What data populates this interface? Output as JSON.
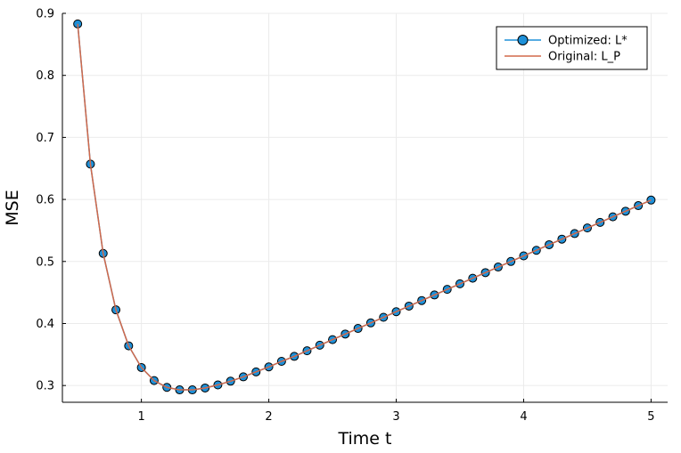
{
  "chart_data": {
    "type": "line",
    "title": "",
    "xlabel": "Time t",
    "ylabel": "MSE",
    "xlim": [
      0.38,
      5.13
    ],
    "ylim": [
      0.273,
      0.9
    ],
    "xticks": [
      1,
      2,
      3,
      4,
      5
    ],
    "yticks": [
      0.3,
      0.4,
      0.5,
      0.6,
      0.7,
      0.8,
      0.9
    ],
    "xtick_labels": [
      "1",
      "2",
      "3",
      "4",
      "5"
    ],
    "ytick_labels": [
      "0.3",
      "0.4",
      "0.5",
      "0.6",
      "0.7",
      "0.8",
      "0.9"
    ],
    "grid": true,
    "legend_position": "top-right",
    "x": [
      0.5,
      0.6,
      0.7,
      0.8,
      0.9,
      1.0,
      1.1,
      1.2,
      1.3,
      1.4,
      1.5,
      1.6,
      1.7,
      1.8,
      1.9,
      2.0,
      2.1,
      2.2,
      2.3,
      2.4,
      2.5,
      2.6,
      2.7,
      2.8,
      2.9,
      3.0,
      3.1,
      3.2,
      3.3,
      3.4,
      3.5,
      3.6,
      3.7,
      3.8,
      3.9,
      4.0,
      4.1,
      4.2,
      4.3,
      4.4,
      4.5,
      4.6,
      4.7,
      4.8,
      4.9,
      5.0
    ],
    "series": [
      {
        "name": "Optimized: L*",
        "style": "line-marker",
        "color": "#1E90D8",
        "values": [
          0.883,
          0.657,
          0.513,
          0.422,
          0.364,
          0.329,
          0.308,
          0.297,
          0.293,
          0.293,
          0.296,
          0.301,
          0.307,
          0.314,
          0.322,
          0.33,
          0.339,
          0.347,
          0.356,
          0.365,
          0.374,
          0.383,
          0.392,
          0.401,
          0.41,
          0.419,
          0.428,
          0.437,
          0.446,
          0.455,
          0.464,
          0.473,
          0.482,
          0.491,
          0.5,
          0.509,
          0.518,
          0.527,
          0.536,
          0.545,
          0.554,
          0.563,
          0.572,
          0.581,
          0.59,
          0.599
        ]
      },
      {
        "name": "Original: L_P",
        "style": "line",
        "color": "#D2694A",
        "values": [
          0.883,
          0.657,
          0.513,
          0.422,
          0.364,
          0.329,
          0.308,
          0.297,
          0.293,
          0.293,
          0.296,
          0.301,
          0.307,
          0.314,
          0.322,
          0.33,
          0.339,
          0.347,
          0.356,
          0.365,
          0.374,
          0.383,
          0.392,
          0.401,
          0.41,
          0.419,
          0.428,
          0.437,
          0.446,
          0.455,
          0.464,
          0.473,
          0.482,
          0.491,
          0.5,
          0.509,
          0.518,
          0.527,
          0.536,
          0.545,
          0.554,
          0.563,
          0.572,
          0.581,
          0.59,
          0.599
        ]
      }
    ]
  }
}
